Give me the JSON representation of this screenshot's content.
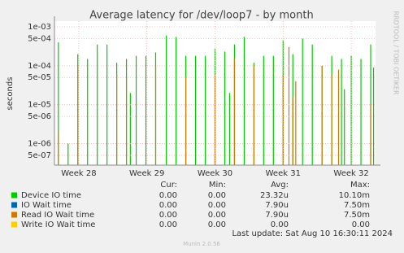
{
  "chart_data": {
    "type": "impulse",
    "title": "Average latency for /dev/loop7 - by month",
    "y_label": "seconds",
    "side_label": "RRDTOOL / TOBI OETIKER",
    "log_y": true,
    "grid": true,
    "xlim": [
      0,
      33
    ],
    "xticks": [
      {
        "value": 2.5,
        "label": "Week 28"
      },
      {
        "value": 9.5,
        "label": "Week 29"
      },
      {
        "value": 16.5,
        "label": "Week 30"
      },
      {
        "value": 23.5,
        "label": "Week 31"
      },
      {
        "value": 30.5,
        "label": "Week 32"
      }
    ],
    "ylim": [
      2.8e-07,
      0.0014
    ],
    "yticks": [
      {
        "value": 0.001,
        "label": "1e-03"
      },
      {
        "value": 0.0005,
        "label": "5e-04"
      },
      {
        "value": 0.0001,
        "label": "1e-04"
      },
      {
        "value": 5e-05,
        "label": "5e-05"
      },
      {
        "value": 1e-05,
        "label": "1e-05"
      },
      {
        "value": 5e-06,
        "label": "5e-06"
      },
      {
        "value": 1e-06,
        "label": "1e-06"
      },
      {
        "value": 5e-07,
        "label": "5e-07"
      }
    ],
    "stat_headers": [
      "Cur:",
      "Min:",
      "Avg:",
      "Max:"
    ],
    "series": [
      {
        "name": "Device IO time",
        "color": "#00cc00",
        "x": [
          0.4,
          1.4,
          2.4,
          3.4,
          4.4,
          5.4,
          6.4,
          7.4,
          7.8,
          8.4,
          9.4,
          10.4,
          11.5,
          12.5,
          13.5,
          14.5,
          15.5,
          16.5,
          17.5,
          18.0,
          18.5,
          19.5,
          20.5,
          21.5,
          22.5,
          23.5,
          24.5,
          25.5,
          26.5,
          27.5,
          28.5,
          29.5,
          29.8,
          30.5,
          31.5,
          32.5,
          32.8
        ],
        "values": [
          0.0004,
          1e-06,
          0.0002,
          0.00015,
          0.00035,
          0.00035,
          0.00012,
          0.00015,
          2e-05,
          0.00018,
          0.00018,
          0.00022,
          0.0006,
          0.00055,
          0.00018,
          0.00018,
          0.00018,
          0.00027,
          0.00023,
          2e-05,
          0.00035,
          0.00055,
          0.00012,
          0.00018,
          0.00018,
          0.00045,
          0.0002,
          0.0005,
          0.00035,
          0.0001,
          0.00018,
          0.00015,
          2.5e-05,
          0.00018,
          0.00015,
          0.00035,
          9e-05
        ],
        "stats": [
          "0.00",
          "0.00",
          "23.32u",
          "10.10m"
        ]
      },
      {
        "name": "IO Wait time",
        "color": "#0066b3",
        "x": [],
        "values": [],
        "stats": [
          "0.00",
          "0.00",
          "7.90u",
          "7.50m"
        ]
      },
      {
        "name": "Read IO Wait time",
        "color": "#cc7a00",
        "x": [
          0.4,
          2.4,
          6.4,
          7.4,
          10.4,
          13.5,
          16.5,
          18.5,
          20.5,
          23.5,
          24.1,
          24.5,
          24.8,
          27.5,
          28.5,
          29.2,
          32.5
        ],
        "values": [
          2e-06,
          0.0001,
          6e-05,
          5e-05,
          0.0001,
          5e-05,
          6e-05,
          0.00015,
          0.0001,
          6e-05,
          0.0003,
          1.5e-05,
          4e-05,
          0.0001,
          6e-05,
          8e-05,
          1e-05
        ],
        "stats": [
          "0.00",
          "0.00",
          "7.90u",
          "7.50m"
        ]
      },
      {
        "name": "Write IO Wait time",
        "color": "#ffcc00",
        "x": [],
        "values": [],
        "stats": [
          "0.00",
          "0.00",
          "0.00",
          "0.00"
        ]
      }
    ],
    "last_update": "Last update: Sat Aug 10 16:30:11 2024",
    "footer": "Munin 2.0.56"
  }
}
